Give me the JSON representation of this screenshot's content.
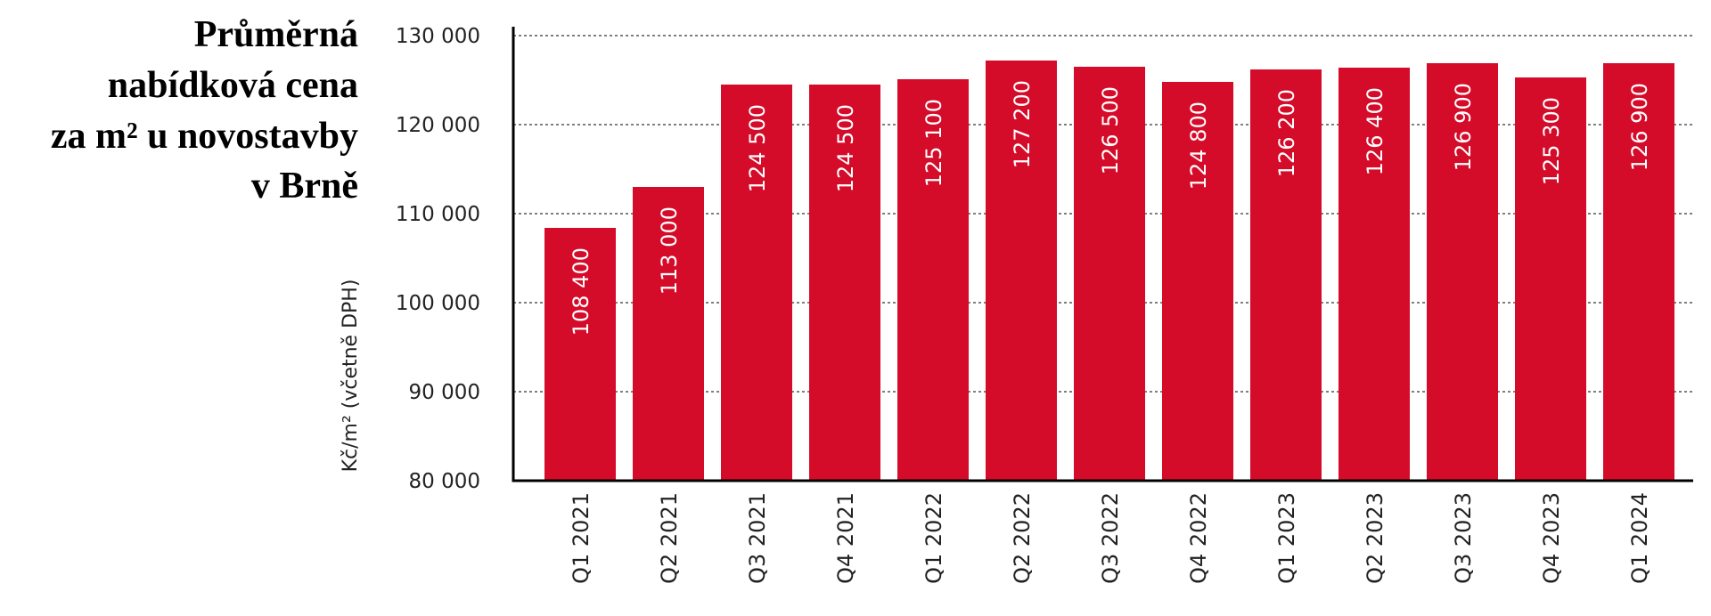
{
  "chart_data": {
    "type": "bar",
    "title": [
      "Průměrná",
      "nabídková cena",
      "za m² u novostavby",
      "v Brně"
    ],
    "y_label": "Kč/m² (včetně DPH)",
    "categories": [
      "Q1 2021",
      "Q2 2021",
      "Q3 2021",
      "Q4 2021",
      "Q1 2022",
      "Q2 2022",
      "Q3 2022",
      "Q4 2022",
      "Q1 2023",
      "Q2 2023",
      "Q3 2023",
      "Q4 2023",
      "Q1 2024"
    ],
    "values": [
      108400,
      113000,
      124500,
      124500,
      125100,
      127200,
      126500,
      124800,
      126200,
      126400,
      126900,
      125300,
      126900
    ],
    "value_labels": [
      "108 400",
      "113 000",
      "124 500",
      "124 500",
      "125 100",
      "127 200",
      "126 500",
      "124 800",
      "126 200",
      "126 400",
      "126 900",
      "125 300",
      "126 900"
    ],
    "color": "#d50b2a",
    "ylim": [
      80000,
      131000
    ],
    "yticks": [
      {
        "value": 80000,
        "label": "80 000"
      },
      {
        "value": 90000,
        "label": "90 000"
      },
      {
        "value": 100000,
        "label": "100 000"
      },
      {
        "value": 110000,
        "label": "110 000"
      },
      {
        "value": 120000,
        "label": "120 000"
      },
      {
        "value": 130000,
        "label": "130 000"
      }
    ],
    "grid": true
  }
}
